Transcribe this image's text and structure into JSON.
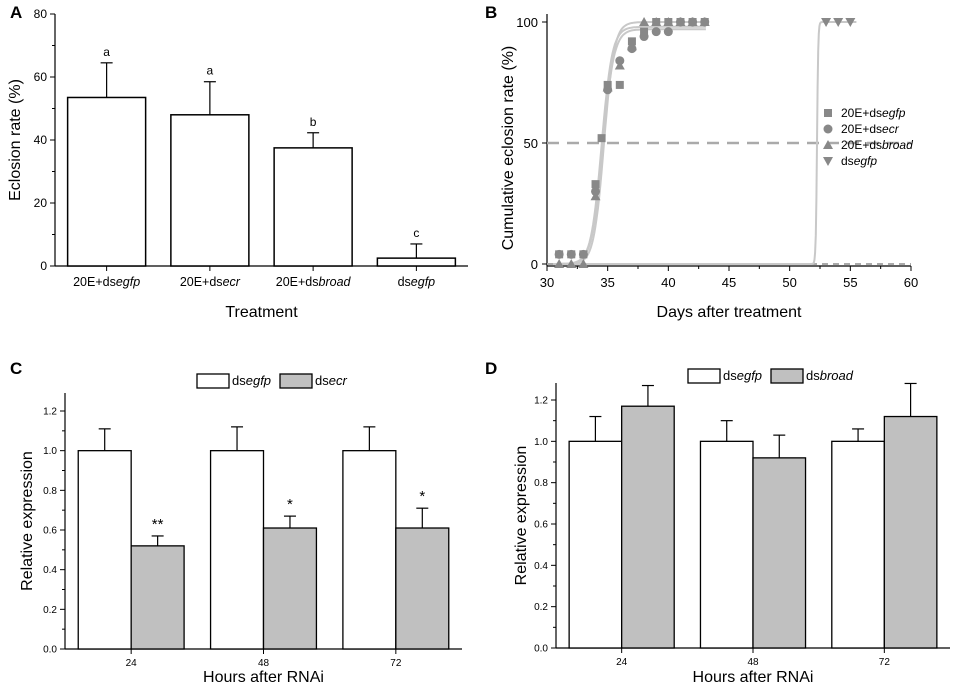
{
  "chart_data": [
    {
      "panel": "A",
      "type": "bar",
      "title": "",
      "xlabel": "Treatment",
      "ylabel": "Eclosion rate (%)",
      "ylim": [
        0,
        80
      ],
      "yticks": [
        "0",
        "20",
        "40",
        "60",
        "80"
      ],
      "categories": [
        {
          "prefix": "20E+ds",
          "italic": "egfp"
        },
        {
          "prefix": "20E+ds",
          "italic": "ecr"
        },
        {
          "prefix": "20E+ds",
          "italic": "broad"
        },
        {
          "prefix": "ds",
          "italic": "egfp"
        }
      ],
      "values": [
        53.5,
        48,
        37.5,
        2.5
      ],
      "errors": [
        11,
        10.5,
        4.8,
        4.5
      ],
      "letters": [
        "a",
        "a",
        "b",
        "c"
      ],
      "bar_color": "#ffffff"
    },
    {
      "panel": "B",
      "type": "scatter",
      "title": "",
      "xlabel": "Days after treatment",
      "ylabel": "Cumulative eclosion rate (%)",
      "xlim": [
        30,
        60
      ],
      "ylim": [
        0,
        100
      ],
      "xticks": [
        "30",
        "35",
        "40",
        "45",
        "50",
        "55",
        "60"
      ],
      "yticks": [
        "0",
        "50",
        "100"
      ],
      "reference_line": 50,
      "legend_position": "right",
      "series": [
        {
          "prefix": "20E+ds",
          "italic": "egfp",
          "marker": "square",
          "x": [
            31,
            32,
            33,
            34,
            34.5,
            35,
            36,
            37,
            38,
            39,
            40,
            41,
            42,
            43
          ],
          "y": [
            4,
            4,
            4,
            33,
            52,
            74,
            74,
            92,
            96,
            100,
            100,
            100,
            100,
            100
          ]
        },
        {
          "prefix": "20E+ds",
          "italic": "ecr",
          "marker": "circle",
          "x": [
            31,
            32,
            33,
            34,
            35,
            36,
            37,
            38,
            39,
            40,
            41,
            42,
            43
          ],
          "y": [
            4,
            4,
            4,
            30,
            72,
            84,
            89,
            94,
            96,
            96,
            100,
            100,
            100
          ]
        },
        {
          "prefix": "20E+ds",
          "italic": "broad",
          "marker": "triangle",
          "x": [
            31,
            32,
            33,
            34,
            35,
            36,
            37,
            38,
            39,
            40,
            41,
            42,
            43
          ],
          "y": [
            0,
            0,
            0,
            28,
            73,
            82,
            90,
            100,
            100,
            100,
            100,
            100,
            100
          ]
        },
        {
          "prefix": "ds",
          "italic": "egfp",
          "marker": "down-triangle",
          "x": [
            53,
            54,
            55
          ],
          "y": [
            100,
            100,
            100
          ]
        }
      ]
    },
    {
      "panel": "C",
      "type": "bar",
      "title": "",
      "xlabel": "Hours after RNAi",
      "ylabel": "Relative expression",
      "ylim": [
        0,
        1.4
      ],
      "yticks": [
        "0.0",
        "0.2",
        "0.4",
        "0.6",
        "0.8",
        "1.0",
        "1.2"
      ],
      "categories": [
        "24",
        "48",
        "72"
      ],
      "legend_position": "top",
      "series": [
        {
          "prefix": "ds",
          "italic": "egfp",
          "color": "#ffffff",
          "values": [
            1.0,
            1.0,
            1.0
          ],
          "errors": [
            0.11,
            0.12,
            0.12
          ],
          "marks": [
            "",
            "",
            ""
          ]
        },
        {
          "prefix": "ds",
          "italic": "ecr",
          "color": "#c0c0c0",
          "values": [
            0.52,
            0.61,
            0.61
          ],
          "errors": [
            0.05,
            0.06,
            0.1
          ],
          "marks": [
            "**",
            "*",
            "*"
          ]
        }
      ]
    },
    {
      "panel": "D",
      "type": "bar",
      "title": "",
      "xlabel": "Hours after RNAi",
      "ylabel": "Relative expression",
      "ylim": [
        0,
        1.4
      ],
      "yticks": [
        "0.0",
        "0.2",
        "0.4",
        "0.6",
        "0.8",
        "1.0",
        "1.2"
      ],
      "categories": [
        "24",
        "48",
        "72"
      ],
      "legend_position": "top",
      "series": [
        {
          "prefix": "ds",
          "italic": "egfp",
          "color": "#ffffff",
          "values": [
            1.0,
            1.0,
            1.0
          ],
          "errors": [
            0.12,
            0.1,
            0.06
          ],
          "marks": [
            "",
            "",
            ""
          ]
        },
        {
          "prefix": "ds",
          "italic": "broad",
          "color": "#c0c0c0",
          "values": [
            1.17,
            0.92,
            1.12
          ],
          "errors": [
            0.1,
            0.11,
            0.16
          ],
          "marks": [
            "",
            "",
            ""
          ]
        }
      ]
    }
  ]
}
